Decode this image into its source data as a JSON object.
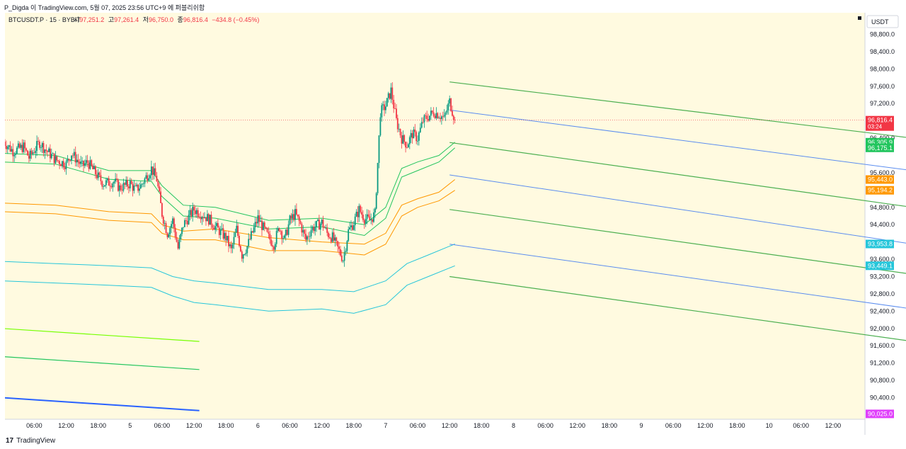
{
  "top_bar": {
    "caption": "P_Digda 이 TradingView.com, 5월 07, 2025 23:56 UTC+9 에 퍼블리쉬함"
  },
  "legend": {
    "symbol": "BTCUSDT.P · 15 · BYBIT",
    "open_label": "시",
    "open": "97,251.2",
    "high_label": "고",
    "high": "97,261.4",
    "low_label": "저",
    "low": "96,750.0",
    "close_label": "종",
    "close": "96,816.4",
    "change": "−434.8 (−0.45%)"
  },
  "currency_button": {
    "label": "USDT"
  },
  "brand": {
    "name": "TradingView",
    "icon": "tradingview-logo-icon"
  },
  "colors": {
    "background": "#fffae0",
    "up_candle": "#089981",
    "down_candle": "#f23645",
    "green_channel": "#4caf50",
    "blue_midline": "#5b8def",
    "teal_band": "#26c6da",
    "orange_band": "#ff9800",
    "mint_band": "#22c55e",
    "lime_line": "#76ff03",
    "dark_blue_line": "#2962ff"
  },
  "chart_data": {
    "type": "candlestick",
    "symbol": "BTCUSDT.P",
    "interval": "15",
    "exchange": "BYBIT",
    "y_axis": {
      "range": [
        89900,
        99300
      ],
      "ticks": [
        "98,800.0",
        "98,400.0",
        "98,000.0",
        "97,600.0",
        "97,200.0",
        "96,400.0",
        "95,600.0",
        "94,800.0",
        "94,400.0",
        "93,600.0",
        "93,200.0",
        "92,800.0",
        "92,400.0",
        "92,000.0",
        "91,600.0",
        "91,200.0",
        "90,800.0",
        "90,400.0"
      ],
      "tick_values": [
        98800,
        98400,
        98000,
        97600,
        97200,
        96400,
        95600,
        94800,
        94400,
        93600,
        93200,
        92800,
        92400,
        92000,
        91600,
        91200,
        90800,
        90400
      ]
    },
    "x_axis": {
      "ticks": [
        "06:00",
        "12:00",
        "18:00",
        "5",
        "06:00",
        "12:00",
        "18:00",
        "6",
        "06:00",
        "12:00",
        "18:00",
        "7",
        "06:00",
        "12:00",
        "18:00",
        "8",
        "06:00",
        "12:00",
        "18:00",
        "9",
        "06:00",
        "12:00",
        "18:00",
        "10",
        "06:00",
        "12:00"
      ],
      "tick_hours": [
        6,
        12,
        18,
        24,
        30,
        36,
        42,
        48,
        54,
        60,
        66,
        72,
        78,
        84,
        90,
        96,
        102,
        108,
        114,
        120,
        126,
        132,
        138,
        144,
        150,
        156
      ],
      "range_hours": [
        0.5,
        162
      ]
    },
    "last_price": 96816.4,
    "price_labels": [
      {
        "value": 96816.4,
        "text": "96,816.4",
        "sub": "03:24",
        "color": "#f23645"
      },
      {
        "value": 96305.9,
        "text": "96,305.9",
        "color": "#22c55e"
      },
      {
        "value": 96175.1,
        "text": "96,175.1",
        "color": "#22c55e"
      },
      {
        "value": 95443.0,
        "text": "95,443.0",
        "color": "#ff9800"
      },
      {
        "value": 95194.2,
        "text": "95,194.2",
        "color": "#ff9800"
      },
      {
        "value": 93953.8,
        "text": "93,953.8",
        "color": "#26c6da"
      },
      {
        "value": 93449.1,
        "text": "93,449.1",
        "color": "#26c6da"
      },
      {
        "value": 90025.0,
        "text": "90,025.0",
        "color": "#e040fb"
      }
    ],
    "close_path": [
      [
        0,
        96350
      ],
      [
        2,
        96100
      ],
      [
        4,
        96200
      ],
      [
        5,
        95950
      ],
      [
        7,
        96300
      ],
      [
        8,
        96150
      ],
      [
        10,
        95900
      ],
      [
        12,
        95800
      ],
      [
        13,
        96050
      ],
      [
        15,
        95750
      ],
      [
        16,
        95850
      ],
      [
        18,
        95500
      ],
      [
        19,
        95350
      ],
      [
        21,
        95400
      ],
      [
        22,
        95250
      ],
      [
        24,
        95350
      ],
      [
        25,
        95200
      ],
      [
        26,
        95300
      ],
      [
        28,
        95700
      ],
      [
        29,
        95450
      ],
      [
        30,
        94650
      ],
      [
        31,
        94200
      ],
      [
        32,
        94500
      ],
      [
        33,
        93850
      ],
      [
        34,
        94400
      ],
      [
        36,
        94750
      ],
      [
        38,
        94600
      ],
      [
        39,
        94500
      ],
      [
        40,
        94350
      ],
      [
        42,
        94100
      ],
      [
        43,
        93800
      ],
      [
        44,
        94300
      ],
      [
        45,
        93700
      ],
      [
        46,
        93900
      ],
      [
        48,
        94550
      ],
      [
        50,
        94100
      ],
      [
        51,
        93950
      ],
      [
        52,
        94350
      ],
      [
        53,
        94050
      ],
      [
        54,
        94500
      ],
      [
        55,
        94650
      ],
      [
        56,
        94400
      ],
      [
        57,
        94050
      ],
      [
        58,
        94300
      ],
      [
        60,
        94450
      ],
      [
        61,
        94200
      ],
      [
        62,
        94100
      ],
      [
        63,
        93850
      ],
      [
        64,
        93600
      ],
      [
        65,
        94250
      ],
      [
        66,
        94450
      ],
      [
        67,
        94750
      ],
      [
        68,
        94550
      ],
      [
        69,
        94500
      ],
      [
        70,
        94650
      ],
      [
        71,
        97000
      ],
      [
        72,
        97150
      ],
      [
        73,
        97500
      ],
      [
        74,
        96800
      ],
      [
        75,
        96400
      ],
      [
        76,
        96250
      ],
      [
        77,
        96500
      ],
      [
        78,
        96400
      ],
      [
        79,
        96800
      ],
      [
        80,
        96900
      ],
      [
        81,
        97000
      ],
      [
        82,
        96950
      ],
      [
        83,
        96850
      ],
      [
        84,
        97250
      ],
      [
        85,
        96816.4
      ]
    ],
    "channel_lines": [
      {
        "color": "#4caf50",
        "width": 1.2,
        "points": [
          [
            84,
            97700
          ],
          [
            171,
            96400
          ]
        ]
      },
      {
        "color": "#5b8def",
        "width": 1.0,
        "points": [
          [
            84,
            97050
          ],
          [
            171,
            95650
          ]
        ]
      },
      {
        "color": "#4caf50",
        "width": 1.2,
        "points": [
          [
            84,
            96300
          ],
          [
            171,
            94800
          ]
        ]
      },
      {
        "color": "#5b8def",
        "width": 1.0,
        "points": [
          [
            84,
            95550
          ],
          [
            171,
            93950
          ]
        ]
      },
      {
        "color": "#4caf50",
        "width": 1.2,
        "points": [
          [
            84,
            94750
          ],
          [
            171,
            93250
          ]
        ]
      },
      {
        "color": "#5b8def",
        "width": 1.0,
        "points": [
          [
            84,
            93950
          ],
          [
            171,
            92450
          ]
        ]
      },
      {
        "color": "#4caf50",
        "width": 1.2,
        "points": [
          [
            84,
            93200
          ],
          [
            171,
            91700
          ]
        ]
      },
      {
        "color": "#76ff03",
        "width": 1.2,
        "points": [
          [
            0,
            92000
          ],
          [
            37,
            91700
          ]
        ]
      },
      {
        "color": "#22c55e",
        "width": 1.2,
        "points": [
          [
            0,
            91350
          ],
          [
            37,
            91050
          ]
        ]
      },
      {
        "color": "#2962ff",
        "width": 2.0,
        "points": [
          [
            0,
            90400
          ],
          [
            37,
            90100
          ]
        ]
      }
    ],
    "bands": [
      {
        "color": "#22c55e",
        "points": [
          [
            0,
            96050
          ],
          [
            10,
            96000
          ],
          [
            20,
            95650
          ],
          [
            28,
            95650
          ],
          [
            30,
            95300
          ],
          [
            34,
            94850
          ],
          [
            40,
            94800
          ],
          [
            50,
            94500
          ],
          [
            60,
            94550
          ],
          [
            68,
            94400
          ],
          [
            72,
            94800
          ],
          [
            75,
            95700
          ],
          [
            78,
            95850
          ],
          [
            82,
            96000
          ],
          [
            85,
            96305.9
          ]
        ]
      },
      {
        "color": "#22c55e",
        "points": [
          [
            0,
            95850
          ],
          [
            10,
            95800
          ],
          [
            20,
            95450
          ],
          [
            28,
            95400
          ],
          [
            30,
            95050
          ],
          [
            34,
            94600
          ],
          [
            40,
            94550
          ],
          [
            50,
            94300
          ],
          [
            60,
            94350
          ],
          [
            68,
            94150
          ],
          [
            72,
            94550
          ],
          [
            75,
            95500
          ],
          [
            78,
            95650
          ],
          [
            82,
            95850
          ],
          [
            85,
            96175.1
          ]
        ]
      },
      {
        "color": "#ff9800",
        "points": [
          [
            0,
            94900
          ],
          [
            10,
            94850
          ],
          [
            20,
            94700
          ],
          [
            28,
            94650
          ],
          [
            30,
            94400
          ],
          [
            34,
            94250
          ],
          [
            40,
            94300
          ],
          [
            50,
            94100
          ],
          [
            60,
            94000
          ],
          [
            68,
            93950
          ],
          [
            72,
            94200
          ],
          [
            75,
            94850
          ],
          [
            78,
            95000
          ],
          [
            82,
            95150
          ],
          [
            85,
            95443.0
          ]
        ]
      },
      {
        "color": "#ff9800",
        "points": [
          [
            0,
            94700
          ],
          [
            10,
            94650
          ],
          [
            20,
            94500
          ],
          [
            28,
            94450
          ],
          [
            30,
            94200
          ],
          [
            34,
            94050
          ],
          [
            40,
            94050
          ],
          [
            50,
            93800
          ],
          [
            60,
            93800
          ],
          [
            68,
            93700
          ],
          [
            72,
            93950
          ],
          [
            75,
            94600
          ],
          [
            78,
            94800
          ],
          [
            82,
            94950
          ],
          [
            85,
            95194.2
          ]
        ]
      },
      {
        "color": "#26c6da",
        "points": [
          [
            0,
            93550
          ],
          [
            10,
            93500
          ],
          [
            20,
            93450
          ],
          [
            28,
            93400
          ],
          [
            32,
            93200
          ],
          [
            36,
            93100
          ],
          [
            40,
            93050
          ],
          [
            50,
            92900
          ],
          [
            60,
            92900
          ],
          [
            66,
            92850
          ],
          [
            72,
            93100
          ],
          [
            76,
            93500
          ],
          [
            80,
            93700
          ],
          [
            85,
            93953.8
          ]
        ]
      },
      {
        "color": "#26c6da",
        "points": [
          [
            0,
            93100
          ],
          [
            10,
            93050
          ],
          [
            20,
            93000
          ],
          [
            28,
            92950
          ],
          [
            32,
            92750
          ],
          [
            36,
            92600
          ],
          [
            40,
            92550
          ],
          [
            50,
            92400
          ],
          [
            60,
            92450
          ],
          [
            66,
            92350
          ],
          [
            72,
            92550
          ],
          [
            76,
            93000
          ],
          [
            80,
            93200
          ],
          [
            85,
            93449.1
          ]
        ]
      }
    ]
  }
}
